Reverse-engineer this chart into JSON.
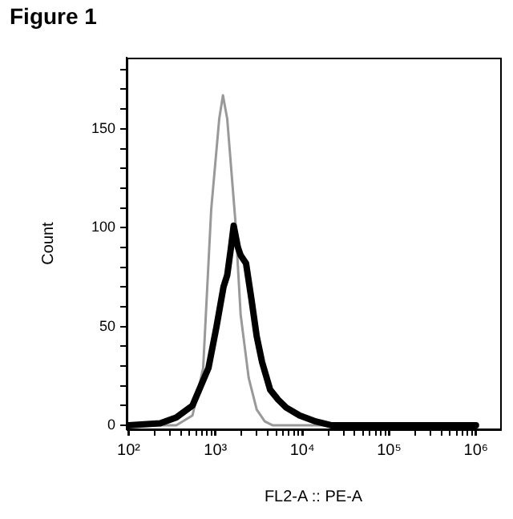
{
  "chart_data": {
    "type": "line",
    "title": "Figure 1",
    "xlabel": "FL2-A :: PE-A",
    "ylabel": "Count",
    "log": "x",
    "xlim": [
      95,
      1900000
    ],
    "ylim": [
      -2,
      186
    ],
    "xticks": [
      {
        "value": 100,
        "label": "10²"
      },
      {
        "value": 200,
        "label": null
      },
      {
        "value": 300,
        "label": null
      },
      {
        "value": 400,
        "label": null
      },
      {
        "value": 500,
        "label": null
      },
      {
        "value": 600,
        "label": null
      },
      {
        "value": 700,
        "label": null
      },
      {
        "value": 800,
        "label": null
      },
      {
        "value": 900,
        "label": null
      },
      {
        "value": 1000,
        "label": "10³"
      },
      {
        "value": 2000,
        "label": null
      },
      {
        "value": 3000,
        "label": null
      },
      {
        "value": 4000,
        "label": null
      },
      {
        "value": 5000,
        "label": null
      },
      {
        "value": 6000,
        "label": null
      },
      {
        "value": 7000,
        "label": null
      },
      {
        "value": 8000,
        "label": null
      },
      {
        "value": 9000,
        "label": null
      },
      {
        "value": 10000,
        "label": "10⁴"
      },
      {
        "value": 20000,
        "label": null
      },
      {
        "value": 30000,
        "label": null
      },
      {
        "value": 40000,
        "label": null
      },
      {
        "value": 50000,
        "label": null
      },
      {
        "value": 60000,
        "label": null
      },
      {
        "value": 70000,
        "label": null
      },
      {
        "value": 80000,
        "label": null
      },
      {
        "value": 90000,
        "label": null
      },
      {
        "value": 100000,
        "label": "10⁵"
      },
      {
        "value": 200000,
        "label": null
      },
      {
        "value": 300000,
        "label": null
      },
      {
        "value": 400000,
        "label": null
      },
      {
        "value": 500000,
        "label": null
      },
      {
        "value": 600000,
        "label": null
      },
      {
        "value": 700000,
        "label": null
      },
      {
        "value": 800000,
        "label": null
      },
      {
        "value": 900000,
        "label": null
      },
      {
        "value": 1000000,
        "label": "10⁶"
      }
    ],
    "yticks": [
      0,
      {
        "value": 10,
        "label": null
      },
      {
        "value": 20,
        "label": null
      },
      {
        "value": 30,
        "label": null
      },
      {
        "value": 40,
        "label": null
      },
      50,
      {
        "value": 60,
        "label": null
      },
      {
        "value": 70,
        "label": null
      },
      {
        "value": 80,
        "label": null
      },
      {
        "value": 90,
        "label": null
      },
      100,
      {
        "value": 110,
        "label": null
      },
      {
        "value": 120,
        "label": null
      },
      {
        "value": 130,
        "label": null
      },
      {
        "value": 140,
        "label": null
      },
      150,
      {
        "value": 160,
        "label": null
      },
      {
        "value": 170,
        "label": null
      },
      {
        "value": 180,
        "label": null
      }
    ],
    "grid": false,
    "legend": false,
    "marker": "none",
    "line_style": "solid",
    "series": [
      {
        "color": "#999999",
        "x": [
          100,
          354,
          544,
          722,
          893,
          1105,
          1220,
          1367,
          1692,
          1950,
          2415,
          2987,
          3698,
          4573,
          1000000
        ],
        "values": [
          0,
          0,
          5,
          29,
          109,
          155,
          167,
          155,
          104,
          56,
          24,
          8,
          2,
          0,
          0
        ]
      },
      {
        "color": "#000000",
        "x": [
          100,
          231,
          354,
          544,
          831,
          1029,
          1238,
          1367,
          1510,
          1622,
          1815,
          1950,
          2249,
          2594,
          2987,
          3444,
          4266,
          5273,
          6527,
          9311,
          14260,
          21860,
          29060,
          1000000
        ],
        "values": [
          0,
          1,
          4,
          10,
          29,
          50,
          70,
          76,
          90,
          101,
          90,
          86,
          82,
          64,
          45,
          32,
          18,
          13,
          9,
          5,
          2,
          0,
          0,
          0
        ]
      }
    ]
  }
}
